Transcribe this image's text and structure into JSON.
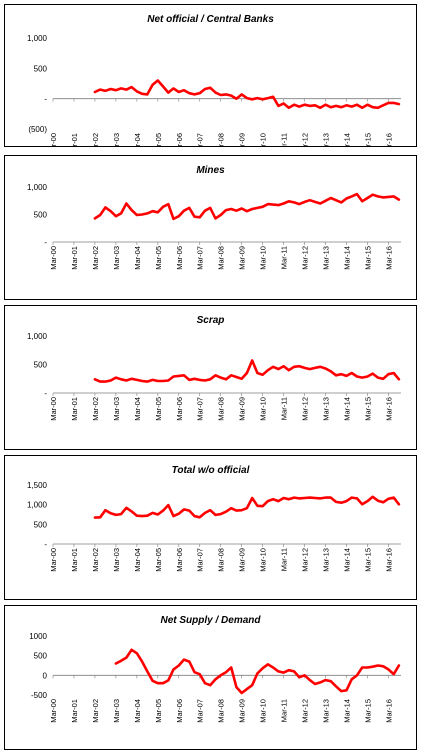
{
  "chart_data": [
    {
      "type": "line",
      "title": "Net official / Central Banks",
      "title_style": "bold-italic",
      "series_color": "#ff0000",
      "yticks": [
        "1,000",
        "500",
        "-",
        "(500)"
      ],
      "ytick_values": [
        1000,
        500,
        0,
        -500
      ],
      "ylim": [
        -500,
        1000
      ],
      "x_tick_labels": [
        "Mar-00",
        "Mar-01",
        "Mar-02",
        "Mar-03",
        "Mar-04",
        "Mar-05",
        "Mar-06",
        "Mar-07",
        "Mar-08",
        "Mar-09",
        "Mar-10",
        "Mar-11",
        "Mar-12",
        "Mar-13",
        "Mar-14",
        "Mar-15",
        "Mar-16"
      ],
      "xlim": [
        2000.0,
        2016.6
      ],
      "x": [
        2002.0,
        2002.25,
        2002.5,
        2002.75,
        2003.0,
        2003.25,
        2003.5,
        2003.75,
        2004.0,
        2004.25,
        2004.5,
        2004.75,
        2005.0,
        2005.25,
        2005.5,
        2005.75,
        2006.0,
        2006.25,
        2006.5,
        2006.75,
        2007.0,
        2007.25,
        2007.5,
        2007.75,
        2008.0,
        2008.25,
        2008.5,
        2008.75,
        2009.0,
        2009.25,
        2009.5,
        2009.75,
        2010.0,
        2010.25,
        2010.5,
        2010.75,
        2011.0,
        2011.25,
        2011.5,
        2011.75,
        2012.0,
        2012.25,
        2012.5,
        2012.75,
        2013.0,
        2013.25,
        2013.5,
        2013.75,
        2014.0,
        2014.25,
        2014.5,
        2014.75,
        2015.0,
        2015.25,
        2015.5,
        2015.75,
        2016.0,
        2016.25,
        2016.5
      ],
      "y": [
        110,
        150,
        130,
        160,
        140,
        170,
        150,
        190,
        120,
        80,
        70,
        230,
        300,
        200,
        100,
        170,
        110,
        140,
        90,
        70,
        90,
        160,
        180,
        100,
        60,
        70,
        50,
        0,
        70,
        10,
        -10,
        10,
        -10,
        10,
        30,
        -120,
        -80,
        -150,
        -100,
        -130,
        -100,
        -120,
        -110,
        -150,
        -100,
        -140,
        -120,
        -140,
        -110,
        -130,
        -100,
        -150,
        -100,
        -140,
        -150,
        -110,
        -70,
        -70,
        -90
      ]
    },
    {
      "type": "line",
      "title": "Mines",
      "title_style": "bold-italic",
      "series_color": "#ff0000",
      "yticks": [
        "1,000",
        "500",
        "-"
      ],
      "ytick_values": [
        1000,
        500,
        0
      ],
      "ylim": [
        0,
        1000
      ],
      "x_tick_labels": [
        "Mar-00",
        "Mar-01",
        "Mar-02",
        "Mar-03",
        "Mar-04",
        "Mar-05",
        "Mar-06",
        "Mar-07",
        "Mar-08",
        "Mar-09",
        "Mar-10",
        "Mar-11",
        "Mar-12",
        "Mar-13",
        "Mar-14",
        "Mar-15",
        "Mar-16"
      ],
      "xlim": [
        2000.0,
        2016.6
      ],
      "x": [
        2002.0,
        2002.25,
        2002.5,
        2002.75,
        2003.0,
        2003.25,
        2003.5,
        2003.75,
        2004.0,
        2004.25,
        2004.5,
        2004.75,
        2005.0,
        2005.25,
        2005.5,
        2005.75,
        2006.0,
        2006.25,
        2006.5,
        2006.75,
        2007.0,
        2007.25,
        2007.5,
        2007.75,
        2008.0,
        2008.25,
        2008.5,
        2008.75,
        2009.0,
        2009.25,
        2009.5,
        2009.75,
        2010.0,
        2010.25,
        2010.5,
        2010.75,
        2011.0,
        2011.25,
        2011.5,
        2011.75,
        2012.0,
        2012.25,
        2012.5,
        2012.75,
        2013.0,
        2013.25,
        2013.5,
        2013.75,
        2014.0,
        2014.25,
        2014.5,
        2014.75,
        2015.0,
        2015.25,
        2015.5,
        2015.75,
        2016.0,
        2016.25,
        2016.5
      ],
      "y": [
        430,
        490,
        630,
        560,
        470,
        520,
        700,
        580,
        490,
        500,
        520,
        560,
        540,
        640,
        690,
        420,
        470,
        570,
        620,
        460,
        450,
        570,
        620,
        430,
        490,
        580,
        600,
        570,
        610,
        560,
        600,
        620,
        640,
        690,
        680,
        670,
        700,
        740,
        720,
        690,
        730,
        760,
        730,
        700,
        750,
        800,
        760,
        720,
        790,
        830,
        870,
        740,
        800,
        860,
        830,
        810,
        820,
        830,
        770
      ]
    },
    {
      "type": "line",
      "title": "Scrap",
      "title_style": "bold-italic",
      "series_color": "#ff0000",
      "yticks": [
        "1,000",
        "500",
        "-"
      ],
      "ytick_values": [
        1000,
        500,
        0
      ],
      "ylim": [
        0,
        1000
      ],
      "x_tick_labels": [
        "Mar-00",
        "Mar-01",
        "Mar-02",
        "Mar-03",
        "Mar-04",
        "Mar-05",
        "Mar-06",
        "Mar-07",
        "Mar-08",
        "Mar-09",
        "Mar-10",
        "Mar-11",
        "Mar-12",
        "Mar-13",
        "Mar-14",
        "Mar-15",
        "Mar-16"
      ],
      "xlim": [
        2000.0,
        2016.6
      ],
      "x": [
        2002.0,
        2002.25,
        2002.5,
        2002.75,
        2003.0,
        2003.25,
        2003.5,
        2003.75,
        2004.0,
        2004.25,
        2004.5,
        2004.75,
        2005.0,
        2005.25,
        2005.5,
        2005.75,
        2006.0,
        2006.25,
        2006.5,
        2006.75,
        2007.0,
        2007.25,
        2007.5,
        2007.75,
        2008.0,
        2008.25,
        2008.5,
        2008.75,
        2009.0,
        2009.25,
        2009.5,
        2009.75,
        2010.0,
        2010.25,
        2010.5,
        2010.75,
        2011.0,
        2011.25,
        2011.5,
        2011.75,
        2012.0,
        2012.25,
        2012.5,
        2012.75,
        2013.0,
        2013.25,
        2013.5,
        2013.75,
        2014.0,
        2014.25,
        2014.5,
        2014.75,
        2015.0,
        2015.25,
        2015.5,
        2015.75,
        2016.0,
        2016.25,
        2016.5
      ],
      "y": [
        240,
        200,
        200,
        220,
        270,
        240,
        220,
        250,
        230,
        210,
        200,
        230,
        210,
        210,
        220,
        290,
        300,
        310,
        230,
        250,
        230,
        220,
        240,
        310,
        270,
        240,
        310,
        280,
        250,
        350,
        570,
        350,
        320,
        400,
        460,
        420,
        470,
        400,
        460,
        470,
        440,
        420,
        440,
        460,
        430,
        380,
        310,
        330,
        300,
        350,
        290,
        270,
        290,
        340,
        270,
        250,
        330,
        350,
        240
      ]
    },
    {
      "type": "line",
      "title": "Total w/o official",
      "title_style": "bold-italic",
      "series_color": "#ff0000",
      "yticks": [
        "1,500",
        "1,000",
        "500",
        "-"
      ],
      "ytick_values": [
        1500,
        1000,
        500,
        0
      ],
      "ylim": [
        0,
        1500
      ],
      "x_tick_labels": [
        "Mar-00",
        "Mar-01",
        "Mar-02",
        "Mar-03",
        "Mar-04",
        "Mar-05",
        "Mar-06",
        "Mar-07",
        "Mar-08",
        "Mar-09",
        "Mar-10",
        "Mar-11",
        "Mar-12",
        "Mar-13",
        "Mar-14",
        "Mar-15",
        "Mar-16"
      ],
      "xlim": [
        2000.0,
        2016.6
      ],
      "x": [
        2002.0,
        2002.25,
        2002.5,
        2002.75,
        2003.0,
        2003.25,
        2003.5,
        2003.75,
        2004.0,
        2004.25,
        2004.5,
        2004.75,
        2005.0,
        2005.25,
        2005.5,
        2005.75,
        2006.0,
        2006.25,
        2006.5,
        2006.75,
        2007.0,
        2007.25,
        2007.5,
        2007.75,
        2008.0,
        2008.25,
        2008.5,
        2008.75,
        2009.0,
        2009.25,
        2009.5,
        2009.75,
        2010.0,
        2010.25,
        2010.5,
        2010.75,
        2011.0,
        2011.25,
        2011.5,
        2011.75,
        2012.0,
        2012.25,
        2012.5,
        2012.75,
        2013.0,
        2013.25,
        2013.5,
        2013.75,
        2014.0,
        2014.25,
        2014.5,
        2014.75,
        2015.0,
        2015.25,
        2015.5,
        2015.75,
        2016.0,
        2016.25,
        2016.5
      ],
      "y": [
        670,
        680,
        860,
        780,
        740,
        760,
        920,
        830,
        720,
        710,
        720,
        790,
        750,
        850,
        990,
        710,
        770,
        880,
        850,
        710,
        680,
        790,
        860,
        740,
        760,
        820,
        910,
        850,
        860,
        910,
        1170,
        970,
        960,
        1090,
        1140,
        1090,
        1170,
        1140,
        1180,
        1160,
        1170,
        1180,
        1170,
        1160,
        1180,
        1180,
        1070,
        1050,
        1090,
        1180,
        1160,
        1010,
        1090,
        1200,
        1100,
        1060,
        1150,
        1180,
        1010
      ]
    },
    {
      "type": "line",
      "title": "Net Supply / Demand",
      "title_style": "bold-italic",
      "series_color": "#ff0000",
      "yticks": [
        "1000",
        "500",
        "0",
        "-500"
      ],
      "ytick_values": [
        1000,
        500,
        0,
        -500
      ],
      "ylim": [
        -500,
        1000
      ],
      "x_tick_labels": [
        "Mar-00",
        "Mar-01",
        "Mar-02",
        "Mar-03",
        "Mar-04",
        "Mar-05",
        "Mar-06",
        "Mar-07",
        "Mar-08",
        "Mar-09",
        "Mar-10",
        "Mar-11",
        "Mar-12",
        "Mar-13",
        "Mar-14",
        "Mar-15",
        "Mar-16"
      ],
      "xlim": [
        2000.0,
        2016.6
      ],
      "x": [
        2003.0,
        2003.25,
        2003.5,
        2003.75,
        2004.0,
        2004.25,
        2004.5,
        2004.75,
        2005.0,
        2005.25,
        2005.5,
        2005.75,
        2006.0,
        2006.25,
        2006.5,
        2006.75,
        2007.0,
        2007.25,
        2007.5,
        2007.75,
        2008.0,
        2008.25,
        2008.5,
        2008.75,
        2009.0,
        2009.25,
        2009.5,
        2009.75,
        2010.0,
        2010.25,
        2010.5,
        2010.75,
        2011.0,
        2011.25,
        2011.5,
        2011.75,
        2012.0,
        2012.25,
        2012.5,
        2012.75,
        2013.0,
        2013.25,
        2013.5,
        2013.75,
        2014.0,
        2014.25,
        2014.5,
        2014.75,
        2015.0,
        2015.25,
        2015.5,
        2015.75,
        2016.0,
        2016.25,
        2016.5
      ],
      "y": [
        300,
        370,
        450,
        650,
        560,
        350,
        100,
        -140,
        -200,
        -200,
        -130,
        150,
        250,
        400,
        350,
        80,
        30,
        -200,
        -250,
        -100,
        0,
        80,
        200,
        -300,
        -450,
        -350,
        -250,
        50,
        180,
        280,
        200,
        100,
        70,
        130,
        100,
        -50,
        0,
        -120,
        -220,
        -180,
        -120,
        -150,
        -280,
        -400,
        -380,
        -100,
        0,
        200,
        200,
        220,
        250,
        230,
        150,
        30,
        250
      ]
    }
  ]
}
